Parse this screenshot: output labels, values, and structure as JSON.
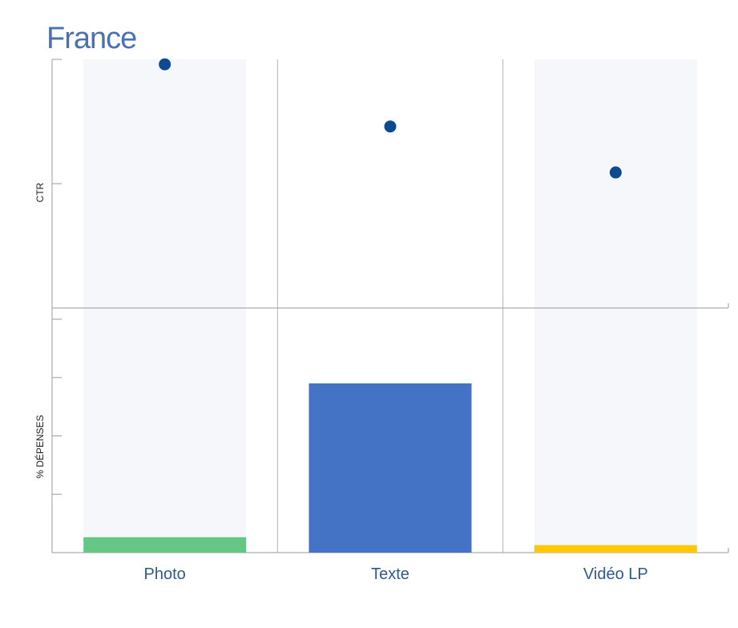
{
  "chart_data": {
    "title": "France",
    "categories": [
      "Photo",
      "Texte",
      "Vidéo LP"
    ],
    "top_panel": {
      "type": "scatter",
      "ylabel": "CTR",
      "ylim": [
        0,
        1
      ],
      "values": [
        0.98,
        0.73,
        0.545
      ],
      "color": "#0d4a8f"
    },
    "bottom_panel": {
      "type": "bar",
      "ylabel": "% DÉPENSES",
      "ylim": [
        0,
        1
      ],
      "values": [
        0.066,
        0.725,
        0.032
      ],
      "colors": [
        "#65c786",
        "#4472c4",
        "#ffc900"
      ]
    },
    "shaded_categories": [
      0,
      2
    ],
    "band_color": "#f6f7fb"
  }
}
